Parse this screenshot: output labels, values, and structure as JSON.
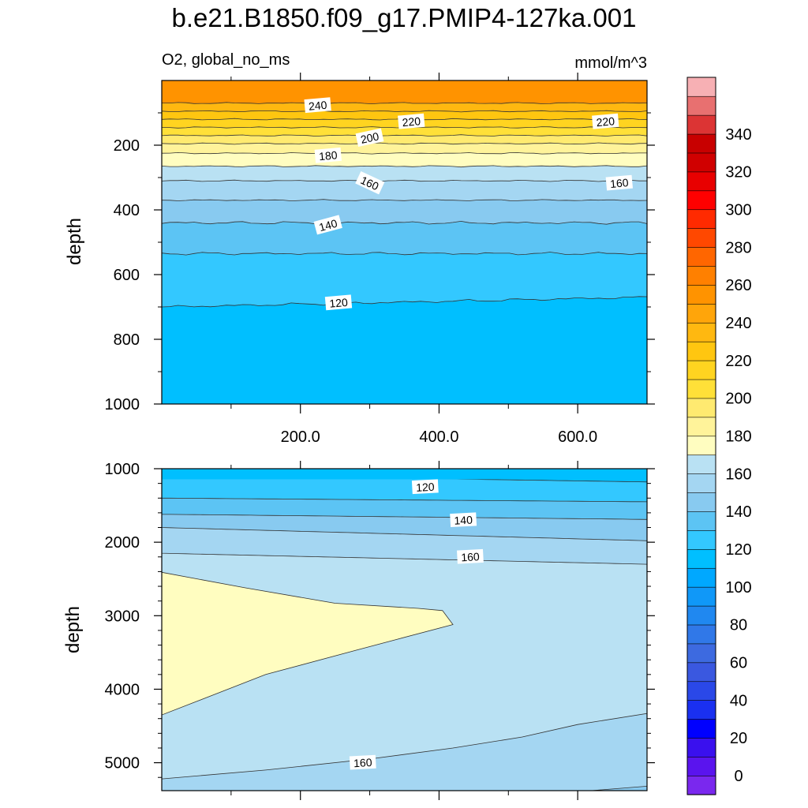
{
  "title": "b.e21.B1850.f09_g17.PMIP4-127ka.001",
  "variable_label": "O2, global_no_ms",
  "units_label": "mmol/m^3",
  "colors": {
    "orange_top": "#ff9300",
    "light_yellow": "#fffdc0",
    "pale_blue": "#b9e1f3",
    "deep_sky": "#00bfff",
    "frame": "#000000",
    "contour_line": "#333333",
    "label_box": "#ffffff"
  },
  "chart_data": [
    {
      "type": "contour",
      "panel": "upper",
      "x_tick_labels": [
        "200.0",
        "400.0",
        "600.0"
      ],
      "x_ticks": [
        200,
        400,
        600
      ],
      "xlim": [
        0,
        700
      ],
      "ylabel": "depth",
      "y_tick_labels": [
        "200",
        "400",
        "600",
        "800",
        "1000"
      ],
      "y_ticks": [
        200,
        400,
        600,
        800,
        1000
      ],
      "ylim": [
        0,
        1000
      ],
      "y_inverted": true,
      "contours": [
        {
          "level": 240,
          "depth": 70,
          "label": "240",
          "label_x": 225
        },
        {
          "level": 230,
          "depth": 95
        },
        {
          "level": 220,
          "depth": 120,
          "label": "220",
          "label_x": 360
        },
        {
          "level": 220,
          "depth": 120,
          "label": "220",
          "label_x": 640
        },
        {
          "level": 210,
          "depth": 145
        },
        {
          "level": 200,
          "depth": 170,
          "label": "200",
          "label_x": 300
        },
        {
          "level": 190,
          "depth": 195
        },
        {
          "level": 180,
          "depth": 225,
          "label": "180",
          "label_x": 240
        },
        {
          "level": 170,
          "depth": 265
        },
        {
          "level": 160,
          "depth": 310,
          "label": "160",
          "label_x": 300
        },
        {
          "level": 160,
          "depth": 310,
          "label": "160",
          "label_x": 660
        },
        {
          "level": 150,
          "depth": 370
        },
        {
          "level": 140,
          "depth": 440,
          "label": "140",
          "label_x": 240
        },
        {
          "level": 130,
          "depth": 535
        },
        {
          "level": 120,
          "depth": 680,
          "label": "120",
          "label_x": 255
        }
      ]
    },
    {
      "type": "contour",
      "panel": "lower",
      "xlim": [
        0,
        700
      ],
      "ylabel": "depth",
      "y_tick_labels": [
        "1000",
        "2000",
        "3000",
        "4000",
        "5000"
      ],
      "y_ticks": [
        1000,
        2000,
        3000,
        4000,
        5000
      ],
      "ylim": [
        1000,
        5380
      ],
      "y_inverted": true,
      "contours": [
        {
          "level": 120,
          "label": "120",
          "label_x": 380,
          "label_depth": 1250
        },
        {
          "level": 140,
          "label": "140",
          "label_x": 435,
          "label_depth": 1700
        },
        {
          "level": 160,
          "label": "160",
          "label_x": 445,
          "label_depth": 2200
        },
        {
          "level": 160,
          "label": "160",
          "label_x": 290,
          "label_depth": 5000
        }
      ]
    }
  ],
  "colorbar": {
    "labels": [
      "0",
      "20",
      "40",
      "60",
      "80",
      "100",
      "120",
      "140",
      "160",
      "180",
      "200",
      "220",
      "240",
      "260",
      "280",
      "300",
      "320",
      "340"
    ],
    "levels": [
      -10,
      0,
      10,
      20,
      30,
      40,
      50,
      60,
      70,
      80,
      90,
      100,
      110,
      120,
      130,
      140,
      150,
      160,
      170,
      180,
      190,
      200,
      210,
      220,
      230,
      240,
      250,
      260,
      270,
      280,
      290,
      300,
      310,
      320,
      330,
      340,
      350,
      360
    ],
    "colors": [
      "#7a28ee",
      "#5a14ee",
      "#3a10ee",
      "#0000ff",
      "#1a30f0",
      "#2a48e8",
      "#3a58e0",
      "#3d6ae0",
      "#3078e8",
      "#2088f0",
      "#1098f8",
      "#00a8ff",
      "#00bfff",
      "#33c8ff",
      "#5cc4f4",
      "#88caf0",
      "#a4d6f2",
      "#b9e1f3",
      "#fffdc0",
      "#fff39a",
      "#ffea70",
      "#ffe038",
      "#ffd420",
      "#ffc610",
      "#ffb810",
      "#ffa50a",
      "#ff9300",
      "#ff8000",
      "#ff6600",
      "#ff4800",
      "#ff2a00",
      "#ff0000",
      "#e80000",
      "#d00000",
      "#c80000",
      "#dc3434",
      "#e87070",
      "#f7b0b4"
    ]
  }
}
